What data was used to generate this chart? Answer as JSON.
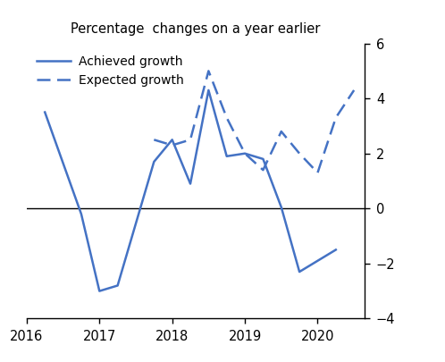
{
  "title": "Percentage  changes on a year earlier",
  "line_color": "#4472C4",
  "achieved_label": "Achieved growth",
  "expected_label": "Expected growth",
  "achieved_x": [
    2016.25,
    2016.75,
    2017.0,
    2017.25,
    2017.75,
    2018.0,
    2018.25,
    2018.5,
    2018.75,
    2019.0,
    2019.25,
    2019.5,
    2019.75,
    2020.25
  ],
  "achieved_y": [
    3.5,
    -0.2,
    -3.0,
    -2.8,
    1.7,
    2.5,
    0.9,
    4.3,
    1.9,
    2.0,
    1.8,
    0.05,
    -2.3,
    -1.5
  ],
  "expected_x": [
    2017.75,
    2018.0,
    2018.25,
    2018.5,
    2018.75,
    2019.0,
    2019.25,
    2019.5,
    2019.75,
    2020.0,
    2020.25,
    2020.5
  ],
  "expected_y": [
    2.5,
    2.3,
    2.5,
    5.0,
    3.3,
    2.0,
    1.4,
    2.8,
    2.0,
    1.3,
    3.3,
    4.3
  ],
  "xlim": [
    2016.0,
    2020.65
  ],
  "ylim": [
    -4,
    6
  ],
  "yticks": [
    -4,
    -2,
    0,
    2,
    4,
    6
  ],
  "xticks": [
    2016,
    2017,
    2018,
    2019,
    2020
  ],
  "background_color": "#ffffff"
}
